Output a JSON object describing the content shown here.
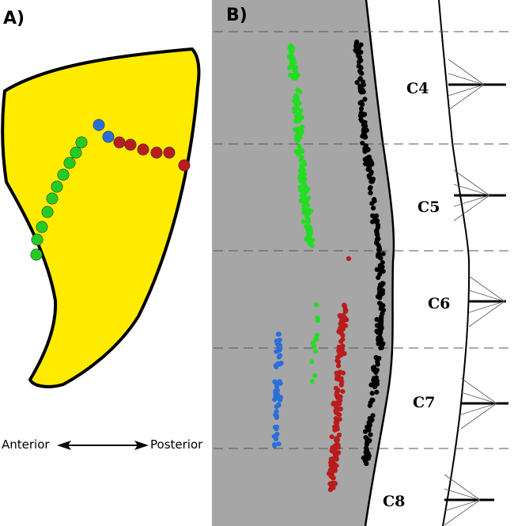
{
  "panel_a": {
    "label": "A)",
    "direction_left": "Anterior",
    "direction_right": "Posterior",
    "colors": {
      "muscle_fill": "#ffeb00",
      "green": "#22cc22",
      "blue": "#2a6fd8",
      "red": "#b81c1c"
    },
    "dot_counts": {
      "green": 10,
      "blue": 2,
      "red": 6
    }
  },
  "panel_b": {
    "label": "B)",
    "segments": [
      "C4",
      "C5",
      "C6",
      "C7",
      "C8"
    ],
    "colors": {
      "background": "#a6a6a6",
      "green": "#22dd22",
      "blue": "#2a6fd8",
      "red": "#b81c1c",
      "black": "#000000"
    }
  }
}
